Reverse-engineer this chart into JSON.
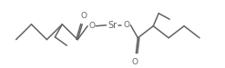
{
  "background_color": "#ffffff",
  "line_color": "#636363",
  "line_width": 1.1,
  "text_color": "#636363",
  "sr_label": "Sr",
  "o_label": "O",
  "figsize": [
    2.47,
    0.75
  ],
  "dpi": 100,
  "font_size": 6.5,
  "xlim": [
    0,
    247
  ],
  "ylim": [
    0,
    75
  ]
}
